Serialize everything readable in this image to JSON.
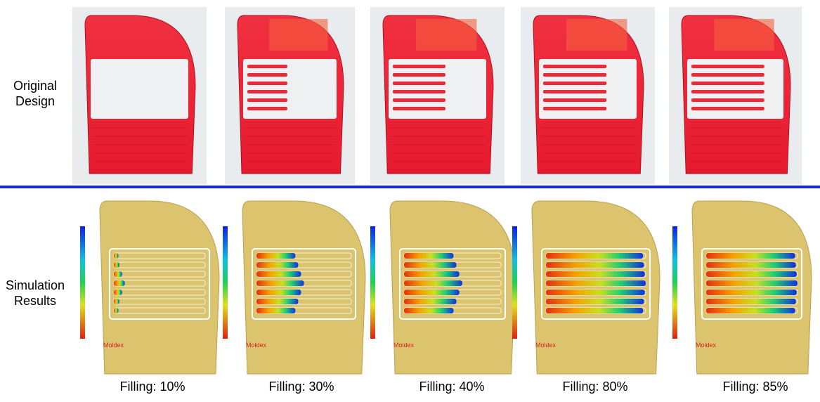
{
  "row_labels": [
    "Original Design",
    "Simulation Results"
  ],
  "captions": [
    "Filling: 10%",
    "Filling: 30%",
    "Filling: 40%",
    "Filling: 80%",
    "Filling: 85%"
  ],
  "sim_label": "Moldex"
}
